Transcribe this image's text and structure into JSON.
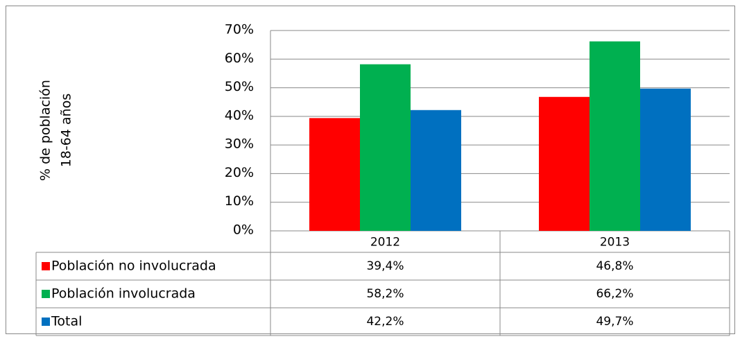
{
  "chart_data": {
    "type": "bar",
    "y_label": [
      "% de población",
      "18-64 años"
    ],
    "categories": [
      "2012",
      "2013"
    ],
    "series": [
      {
        "name": "Población no involucrada",
        "color": "#ff0000",
        "values": [
          39.4,
          46.8
        ],
        "value_labels": [
          "39,4%",
          "46,8%"
        ]
      },
      {
        "name": "Población involucrada",
        "color": "#00b050",
        "values": [
          58.2,
          66.2
        ],
        "value_labels": [
          "58,2%",
          "66,2%"
        ]
      },
      {
        "name": "Total",
        "color": "#0070c0",
        "values": [
          42.2,
          49.7
        ],
        "value_labels": [
          "42,2%",
          "49,7%"
        ]
      }
    ],
    "ylim": [
      0,
      70
    ],
    "yticks": [
      {
        "value": 0,
        "label": "0%"
      },
      {
        "value": 10,
        "label": "10%"
      },
      {
        "value": 20,
        "label": "20%"
      },
      {
        "value": 30,
        "label": "30%"
      },
      {
        "value": 40,
        "label": "40%"
      },
      {
        "value": 50,
        "label": "50%"
      },
      {
        "value": 60,
        "label": "60%"
      },
      {
        "value": 70,
        "label": "70%"
      }
    ],
    "grid": true,
    "data_table": true
  }
}
